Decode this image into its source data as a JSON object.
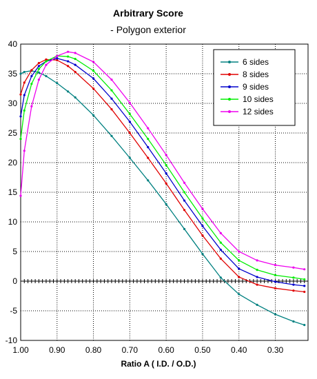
{
  "chart_data": {
    "type": "line",
    "title": "Arbitrary Score",
    "subtitle": "- Polygon exterior",
    "xlabel": "Ratio A ( I.D. / O.D.)",
    "ylabel": "",
    "xlim": [
      1.0,
      0.21
    ],
    "ylim": [
      -10,
      40
    ],
    "x_reversed": true,
    "x_ticks": [
      "1.00",
      "0.90",
      "0.80",
      "0.70",
      "0.60",
      "0.50",
      "0.40",
      "0.30"
    ],
    "y_ticks": [
      "40",
      "35",
      "30",
      "25",
      "20",
      "15",
      "10",
      "5",
      "0",
      "-5",
      "-10"
    ],
    "grid": true,
    "legend_position": "top-right",
    "x": [
      1.0,
      0.99,
      0.97,
      0.95,
      0.93,
      0.9,
      0.87,
      0.85,
      0.8,
      0.75,
      0.7,
      0.65,
      0.6,
      0.55,
      0.5,
      0.45,
      0.4,
      0.35,
      0.3,
      0.25,
      0.22
    ],
    "series": [
      {
        "name": "6 sides",
        "color": "#008080",
        "values": [
          35.0,
          35.3,
          35.5,
          35.2,
          34.6,
          33.4,
          32.0,
          31.0,
          28.0,
          24.5,
          20.8,
          17.0,
          13.0,
          8.8,
          4.6,
          0.6,
          -2.2,
          -4.0,
          -5.6,
          -6.8,
          -7.4
        ]
      },
      {
        "name": "8 sides",
        "color": "#e00000",
        "values": [
          31.5,
          33.5,
          35.6,
          36.8,
          37.4,
          37.3,
          36.3,
          35.3,
          32.5,
          29.0,
          25.0,
          20.8,
          16.5,
          12.0,
          7.7,
          3.8,
          0.7,
          -0.6,
          -1.2,
          -1.6,
          -1.8
        ]
      },
      {
        "name": "9 sides",
        "color": "#0000cc",
        "values": [
          27.8,
          31.4,
          34.6,
          36.3,
          37.1,
          37.6,
          37.1,
          36.5,
          34.2,
          30.8,
          26.9,
          22.6,
          18.2,
          13.6,
          9.3,
          5.3,
          2.1,
          0.7,
          -0.1,
          -0.6,
          -0.8
        ]
      },
      {
        "name": "10 sides",
        "color": "#00ee00",
        "values": [
          24.0,
          28.8,
          33.3,
          35.8,
          37.1,
          38.0,
          37.9,
          37.5,
          35.5,
          32.2,
          28.2,
          24.0,
          19.6,
          15.0,
          10.6,
          6.5,
          3.5,
          1.9,
          1.0,
          0.6,
          0.3
        ]
      },
      {
        "name": "12 sides",
        "color": "#ee00ee",
        "values": [
          14.4,
          22.0,
          29.5,
          34.0,
          36.5,
          38.0,
          38.7,
          38.5,
          37.0,
          34.0,
          30.1,
          25.8,
          21.3,
          16.6,
          12.2,
          8.1,
          5.0,
          3.5,
          2.7,
          2.3,
          2.0
        ]
      }
    ]
  }
}
